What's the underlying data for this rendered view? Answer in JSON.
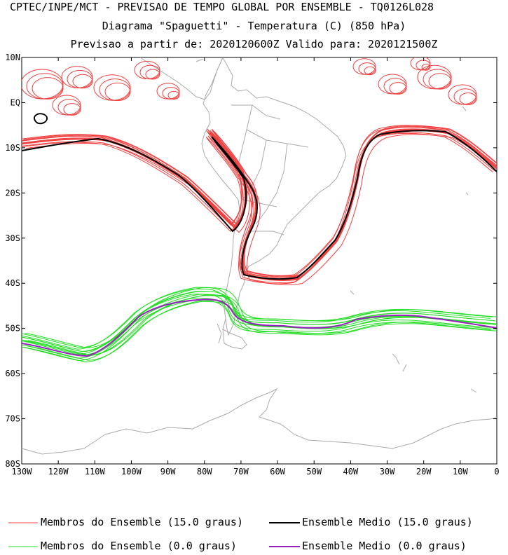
{
  "title": {
    "line1": "CPTEC/INPE/MCT - PREVISAO DE TEMPO GLOBAL POR ENSEMBLE - TQ0126L028",
    "line2": "Diagrama \"Spaguetti\" - Temperatura (C) (850 hPa)",
    "line3": "Previsao a partir de: 2020120600Z  Valido para: 2020121500Z"
  },
  "map": {
    "region": "South America and adjacent oceans",
    "lon_range": [
      -130,
      0
    ],
    "lat_range": [
      -80,
      10
    ],
    "lat_ticks": [
      "10N",
      "EQ",
      "10S",
      "20S",
      "30S",
      "40S",
      "50S",
      "60S",
      "70S",
      "80S"
    ],
    "lon_ticks": [
      "130W",
      "120W",
      "110W",
      "100W",
      "90W",
      "80W",
      "70W",
      "60W",
      "50W",
      "40W",
      "30W",
      "20W",
      "10W",
      "0"
    ]
  },
  "contours": {
    "warm_member_color": "#f04040",
    "warm_mean_color": "#000000",
    "cold_member_color": "#22dd22",
    "cold_mean_color": "#9a1fbf",
    "coast_color": "#aaaaaa"
  },
  "legend": {
    "item1": "Membros do Ensemble (15.0 graus)",
    "item2": "Ensemble Medio (15.0 graus)",
    "item3": "Membros do Ensemble (0.0 graus)",
    "item4": "Ensemble Medio (0.0 graus)"
  }
}
